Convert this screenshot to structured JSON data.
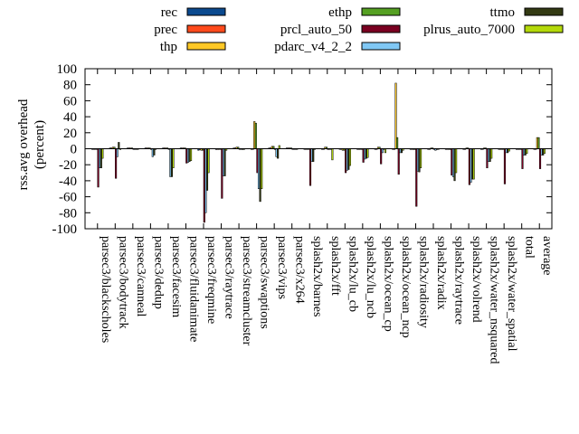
{
  "chart_data": {
    "type": "bar",
    "title": "",
    "xlabel": "",
    "ylabel_lines": [
      "rss.avg overhead",
      "(percent)"
    ],
    "ylim": [
      -100,
      100
    ],
    "yticks": [
      100,
      80,
      60,
      40,
      20,
      0,
      -20,
      -40,
      -60,
      -80,
      -100
    ],
    "grid": false,
    "legend_position": "top",
    "categories": [
      "parsec3/blackscholes",
      "parsec3/bodytrack",
      "parsec3/canneal",
      "parsec3/dedup",
      "parsec3/facesim",
      "parsec3/fluidanimate",
      "parsec3/freqmine",
      "parsec3/raytrace",
      "parsec3/streamcluster",
      "parsec3/swaptions",
      "parsec3/vips",
      "parsec3/x264",
      "splash2x/barnes",
      "splash2x/fft",
      "splash2x/lu_cb",
      "splash2x/lu_ncb",
      "splash2x/ocean_cp",
      "splash2x/ocean_ncp",
      "splash2x/radiosity",
      "splash2x/radix",
      "splash2x/raytrace",
      "splash2x/volrend",
      "splash2x/water_nsquared",
      "splash2x/water_spatial",
      "total",
      "average"
    ],
    "series": [
      {
        "name": "rec",
        "color": "#0b4a8f",
        "values": [
          0,
          1,
          1,
          1,
          1,
          1,
          -2,
          -1,
          1,
          0,
          1,
          1,
          0,
          0,
          0,
          0,
          0,
          0,
          0,
          0,
          0,
          0,
          0,
          0,
          0,
          0
        ]
      },
      {
        "name": "prec",
        "color": "#ff4a1c",
        "values": [
          0,
          1,
          1,
          1,
          1,
          1,
          -1,
          -1,
          1,
          0,
          1,
          1,
          0,
          0,
          0,
          0,
          0,
          0,
          0,
          0,
          0,
          0,
          0,
          0,
          0,
          0
        ]
      },
      {
        "name": "thp",
        "color": "#ffc825",
        "values": [
          0,
          2,
          1,
          1,
          1,
          1,
          -2,
          0,
          2,
          34,
          3,
          1,
          0,
          2,
          -2,
          0,
          2,
          82,
          -1,
          1,
          0,
          1,
          1,
          0,
          0,
          14
        ]
      },
      {
        "name": "ethp",
        "color": "#55a022",
        "values": [
          0,
          2,
          1,
          1,
          1,
          1,
          -2,
          0,
          2,
          32,
          3,
          1,
          0,
          2,
          -2,
          0,
          2,
          14,
          -1,
          1,
          -1,
          1,
          1,
          0,
          0,
          14
        ]
      },
      {
        "name": "prcl_auto_50",
        "color": "#7a0021",
        "values": [
          -48,
          -37,
          0,
          0,
          0,
          -18,
          -92,
          -62,
          0,
          -30,
          0,
          0,
          -46,
          -1,
          -30,
          -17,
          -19,
          -32,
          -72,
          0,
          -33,
          -45,
          -24,
          -44,
          -25,
          -25
        ]
      },
      {
        "name": "pdarc_v4_2_2",
        "color": "#80c8f5",
        "values": [
          -24,
          -10,
          0,
          -10,
          -35,
          -17,
          -80,
          -34,
          0,
          -50,
          -10,
          0,
          -16,
          0,
          -27,
          -13,
          -5,
          -5,
          -28,
          -2,
          -35,
          -42,
          -16,
          -5,
          -8,
          -8
        ]
      },
      {
        "name": "ttmo",
        "color": "#333a13",
        "values": [
          -24,
          8,
          0,
          -8,
          -35,
          -16,
          -52,
          -34,
          -1,
          -66,
          -12,
          0,
          -16,
          0,
          -26,
          -12,
          0,
          -5,
          -29,
          -1,
          -40,
          -38,
          -16,
          -5,
          -8,
          -8
        ]
      },
      {
        "name": "plrus_auto_7000",
        "color": "#b4d90a",
        "values": [
          -12,
          -1,
          0,
          0,
          -24,
          -15,
          -30,
          -2,
          -1,
          -50,
          4,
          0,
          0,
          -14,
          -21,
          -11,
          -5,
          -2,
          -24,
          0,
          -30,
          -38,
          -12,
          -3,
          -6,
          -6
        ]
      }
    ]
  }
}
